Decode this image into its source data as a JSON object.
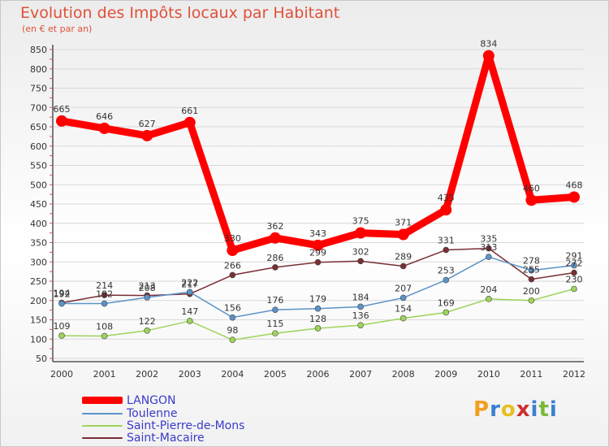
{
  "title": "Evolution des Impôts locaux par Habitant",
  "subtitle": "(en € et par an)",
  "logo": [
    "P",
    "r",
    "o",
    "x",
    "i",
    "t",
    "i"
  ],
  "colors": {
    "langon": "#ff0000",
    "toulenne": "#5b93c8",
    "saint_pierre": "#9ed45b",
    "saint_macaire": "#7a2e33",
    "axis": "#000000",
    "grid": "#d8d8d8",
    "label": "#333333"
  },
  "chart_data": {
    "type": "line",
    "title": "Evolution des Impôts locaux par Habitant",
    "ylabel": "(en € et par an)",
    "x": [
      "2000",
      "2001",
      "2002",
      "2003",
      "2004",
      "2005",
      "2006",
      "2007",
      "2008",
      "2009",
      "2010",
      "2011",
      "2012"
    ],
    "ylim": [
      50,
      850
    ],
    "yticks": [
      50,
      100,
      150,
      200,
      250,
      300,
      350,
      400,
      450,
      500,
      550,
      600,
      650,
      700,
      750,
      800,
      850
    ],
    "grid": true,
    "legend_position": "bottom-left",
    "series": [
      {
        "name": "LANGON",
        "color": "#ff0000",
        "values": [
          665,
          646,
          627,
          661,
          330,
          362,
          343,
          375,
          371,
          435,
          834,
          460,
          468
        ]
      },
      {
        "name": "Toulenne",
        "color": "#5b93c8",
        "values": [
          192,
          192,
          208,
          222,
          156,
          176,
          179,
          184,
          207,
          253,
          313,
          278,
          291
        ]
      },
      {
        "name": "Saint-Pierre-de-Mons",
        "color": "#9ed45b",
        "values": [
          109,
          108,
          122,
          147,
          98,
          115,
          128,
          136,
          154,
          169,
          204,
          200,
          230
        ]
      },
      {
        "name": "Saint-Macaire",
        "color": "#7a2e33",
        "values": [
          194,
          214,
          213,
          217,
          266,
          286,
          299,
          302,
          289,
          331,
          335,
          255,
          272
        ]
      }
    ]
  }
}
